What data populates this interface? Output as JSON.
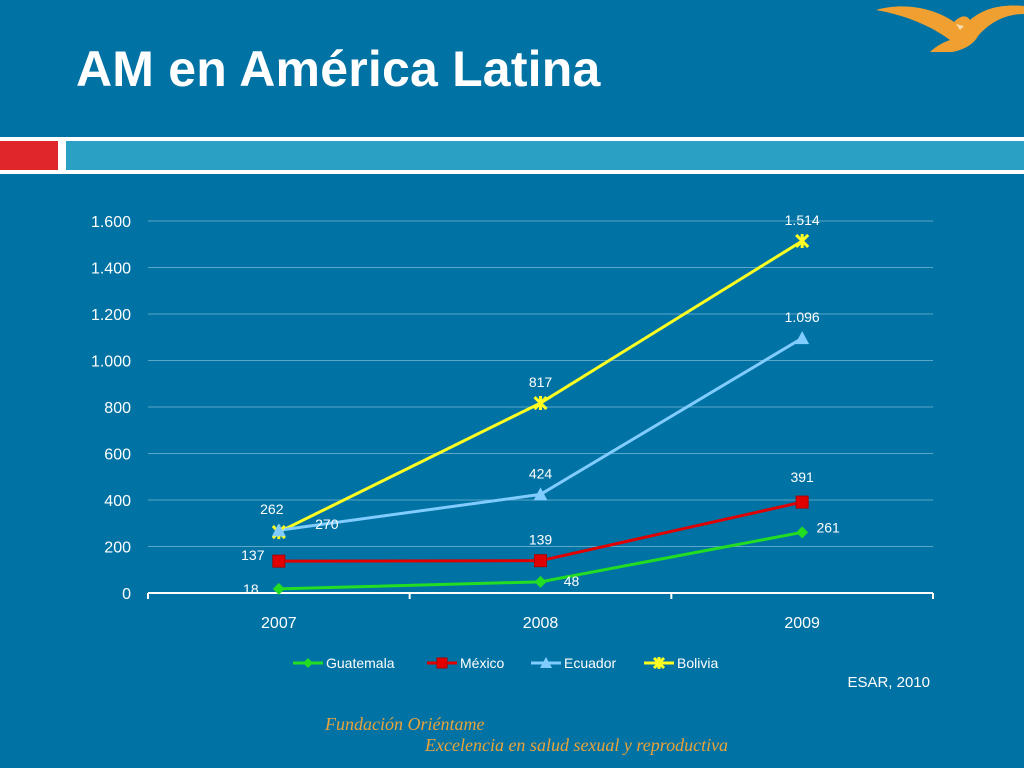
{
  "slide": {
    "title": "AM en América Latina",
    "source": "ESAR, 2010",
    "organization": "Fundación Oriéntame",
    "tagline": "Excelencia en salud sexual y reproductiva"
  },
  "colors": {
    "background": "#0072a3",
    "accent_red": "#e0262b",
    "accent_teal": "#2aa0c4",
    "logo_orange": "#f0a030",
    "footer_text": "#e8a33a"
  },
  "chart_data": {
    "type": "line",
    "categories": [
      "2007",
      "2008",
      "2009"
    ],
    "series": [
      {
        "name": "Guatemala",
        "values": [
          18,
          48,
          261
        ],
        "labels": [
          "18",
          "48",
          "261"
        ],
        "color": "#22dd22",
        "marker": "diamond"
      },
      {
        "name": "México",
        "values": [
          137,
          139,
          391
        ],
        "labels": [
          "137",
          "139",
          "391"
        ],
        "color": "#e00000",
        "marker": "square"
      },
      {
        "name": "Ecuador",
        "values": [
          270,
          424,
          1096
        ],
        "labels": [
          "270",
          "424",
          "1.096"
        ],
        "color": "#80ccff",
        "marker": "triangle"
      },
      {
        "name": "Bolivia",
        "values": [
          262,
          817,
          1514
        ],
        "labels": [
          "262",
          "817",
          "1.514"
        ],
        "color": "#ffff22",
        "marker": "star"
      }
    ],
    "ylim": [
      0,
      1600
    ],
    "yticks": [
      {
        "value": 0,
        "label": "0"
      },
      {
        "value": 200,
        "label": "200"
      },
      {
        "value": 400,
        "label": "400"
      },
      {
        "value": 600,
        "label": "600"
      },
      {
        "value": 800,
        "label": "800"
      },
      {
        "value": 1000,
        "label": "1.000"
      },
      {
        "value": 1200,
        "label": "1.200"
      },
      {
        "value": 1400,
        "label": "1.400"
      },
      {
        "value": 1600,
        "label": "1.600"
      }
    ],
    "grid": true,
    "legend": "bottom",
    "title": "",
    "xlabel": "",
    "ylabel": ""
  }
}
